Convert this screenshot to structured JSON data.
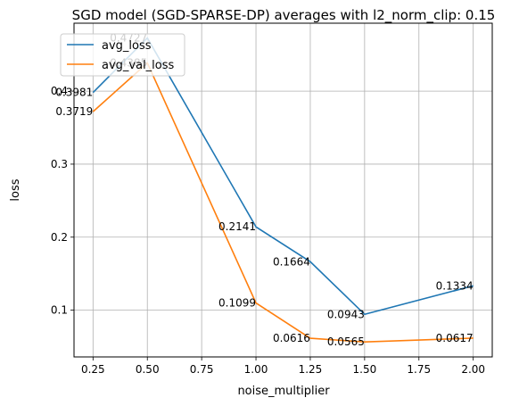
{
  "chart_data": {
    "type": "line",
    "title": "SGD model (SGD-SPARSE-DP) averages with l2_norm_clip: 0.15",
    "xlabel": "noise_multiplier",
    "ylabel": "loss",
    "x": [
      0.25,
      0.5,
      1.0,
      1.25,
      1.5,
      2.0
    ],
    "xlim": [
      0.1625,
      2.0875
    ],
    "ylim": [
      0.036,
      0.493
    ],
    "xticks": [
      0.25,
      0.5,
      0.75,
      1.0,
      1.25,
      1.5,
      1.75,
      2.0
    ],
    "xtick_labels": [
      "0.25",
      "0.50",
      "0.75",
      "1.00",
      "1.25",
      "1.50",
      "1.75",
      "2.00"
    ],
    "yticks": [
      0.1,
      0.2,
      0.3,
      0.4
    ],
    "ytick_labels": [
      "0.1",
      "0.2",
      "0.3",
      "0.4"
    ],
    "grid": true,
    "legend_position": "top-left",
    "series": [
      {
        "name": "avg_loss",
        "color": "#1f77b4",
        "values": [
          0.3981,
          0.4727,
          0.2141,
          0.1664,
          0.0943,
          0.1334
        ],
        "labels": [
          "0.3981",
          "0.4727",
          "0.2141",
          "0.1664",
          "0.0943",
          "0.1334"
        ]
      },
      {
        "name": "avg_val_loss",
        "color": "#ff7f0e",
        "values": [
          0.3719,
          0.4385,
          0.1099,
          0.0616,
          0.0565,
          0.0617
        ],
        "labels": [
          "0.3719",
          "0.4385",
          "0.1099",
          "0.0616",
          "0.0565",
          "0.0617"
        ]
      }
    ]
  }
}
